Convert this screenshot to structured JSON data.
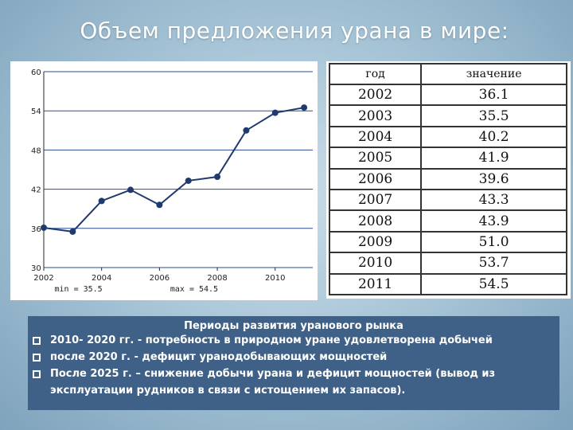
{
  "title": "Объем предложения урана в мире:",
  "chart_data": {
    "type": "line",
    "x": [
      2002,
      2003,
      2004,
      2005,
      2006,
      2007,
      2008,
      2009,
      2010,
      2011
    ],
    "series": [
      {
        "values": [
          36.1,
          35.5,
          40.2,
          41.9,
          39.6,
          43.3,
          43.9,
          51.0,
          53.7,
          54.5
        ]
      }
    ],
    "xlim": [
      2002,
      2011.3
    ],
    "ylim": [
      30,
      60
    ],
    "xticks": [
      2002,
      2004,
      2006,
      2008,
      2010
    ],
    "yticks": [
      30,
      36,
      42,
      48,
      54,
      60
    ],
    "grid": "horizontal",
    "line_color": "#1f3a6e",
    "grid_color": "#2a4d8f",
    "annotations": {
      "min": "min = 35.5",
      "max": "max = 54.5"
    }
  },
  "table": {
    "headers": [
      "год",
      "значение"
    ],
    "rows": [
      [
        "2002",
        "36.1"
      ],
      [
        "2003",
        "35.5"
      ],
      [
        "2004",
        "40.2"
      ],
      [
        "2005",
        "41.9"
      ],
      [
        "2006",
        "39.6"
      ],
      [
        "2007",
        "43.3"
      ],
      [
        "2008",
        "43.9"
      ],
      [
        "2009",
        "51.0"
      ],
      [
        "2010",
        "53.7"
      ],
      [
        "2011",
        "54.5"
      ]
    ]
  },
  "info": {
    "heading": "Периоды развития уранового рынка",
    "items": [
      "2010- 2020 гг. - потребность в природном уране удовлетворена добычей",
      "после 2020 г. - дефицит уранодобывающих мощностей",
      "После 2025 г. – снижение добычи урана и дефицит мощностей (вывод из эксплуатации рудников в связи с истощением их запасов)."
    ]
  },
  "colors": {
    "box_background": "#3f6188",
    "title_color": "#ffffff"
  }
}
